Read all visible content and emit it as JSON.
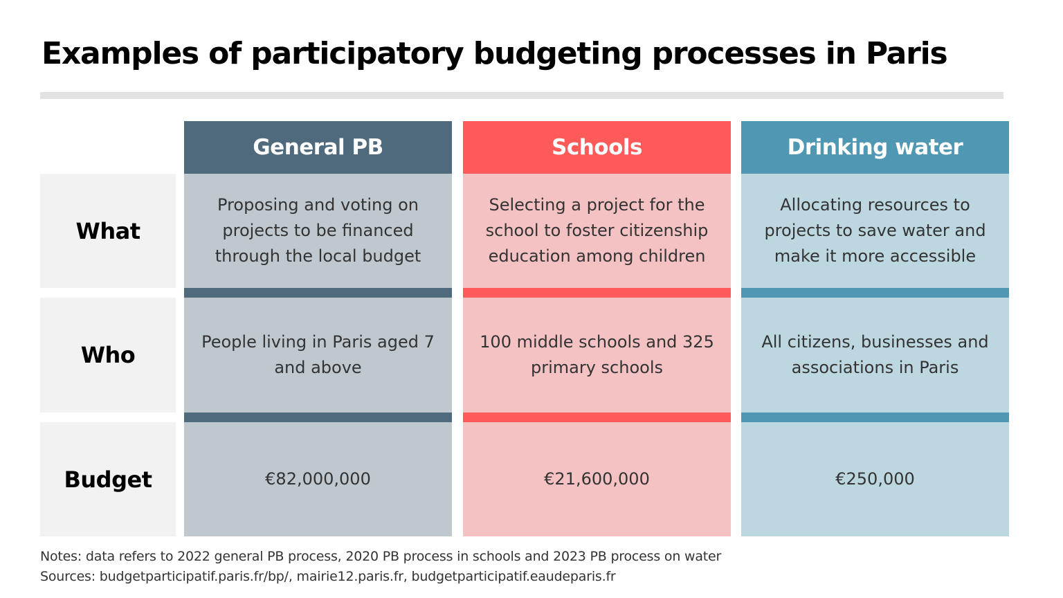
{
  "title": "Examples of participatory budgeting processes in Paris",
  "columns": [
    {
      "label": "General PB",
      "header_color": "#4f6a7c",
      "body_color": "#bfc8cf"
    },
    {
      "label": "Schools",
      "header_color": "#ff5a5a",
      "body_color": "#f4c2c3"
    },
    {
      "label": "Drinking water",
      "header_color": "#4f97b3",
      "body_color": "#bdd7e0"
    }
  ],
  "rows": [
    {
      "label": "What",
      "cells": [
        "Proposing and voting on projects to be financed through the local budget",
        "Selecting a project for the school to foster citizenship education among children",
        "Allocating resources to projects to save water and make it more accessible"
      ]
    },
    {
      "label": "Who",
      "cells": [
        "People living in Paris aged 7 and above",
        "100 middle schools and 325 primary schools",
        "All citizens, businesses and associations in Paris"
      ]
    },
    {
      "label": "Budget",
      "cells": [
        "€82,000,000",
        "€21,600,000",
        "€250,000"
      ]
    }
  ],
  "notes": "Notes: data refers to 2022 general PB process, 2020 PB process in schools and 2023 PB process on water",
  "sources": "Sources: budgetparticipatif.paris.fr/bp/, mairie12.paris.fr, budgetparticipatif.eaudeparis.fr"
}
